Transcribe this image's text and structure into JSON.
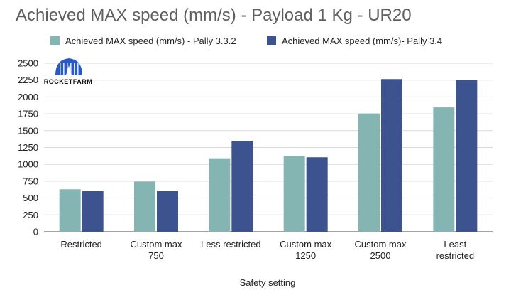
{
  "chart_data": {
    "type": "bar",
    "title": "Achieved MAX speed (mm/s) - Payload 1 Kg - UR20",
    "xlabel": "Safety setting",
    "ylabel": "",
    "ylim": [
      0,
      2500
    ],
    "yticks": [
      0,
      250,
      500,
      750,
      1000,
      1250,
      1500,
      1750,
      2000,
      2250,
      2500
    ],
    "grid": true,
    "legend_position": "top",
    "categories": [
      [
        "Restricted"
      ],
      [
        "Custom max",
        "750"
      ],
      [
        "Less restricted"
      ],
      [
        "Custom max",
        "1250"
      ],
      [
        "Custom max",
        "2500"
      ],
      [
        "Least",
        "restricted"
      ]
    ],
    "series": [
      {
        "name": "Achieved MAX speed (mm/s) - Pally 3.3.2",
        "color": "#84b5b3",
        "values": [
          630,
          745,
          1090,
          1125,
          1755,
          1845
        ]
      },
      {
        "name": "Achieved MAX speed (mm/s)- Pally 3.4",
        "color": "#3c5390",
        "values": [
          605,
          605,
          1350,
          1105,
          2265,
          2250
        ]
      }
    ]
  },
  "logo": {
    "text": "ROCKETFARM",
    "icon": "rocket-dome-icon",
    "color": "#2b59c3"
  }
}
